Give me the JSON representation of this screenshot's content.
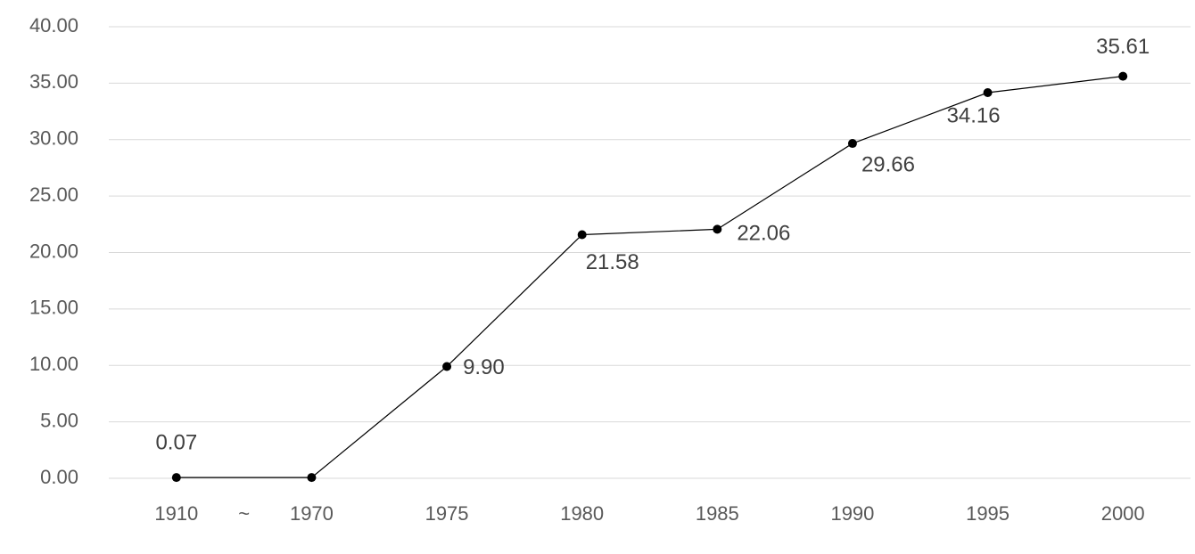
{
  "chart_data": {
    "type": "line",
    "categories": [
      "1910",
      "1970",
      "1975",
      "1980",
      "1985",
      "1990",
      "1995",
      "2000"
    ],
    "break_label": "~",
    "values": [
      0.07,
      0.07,
      9.9,
      21.58,
      22.06,
      29.66,
      34.16,
      35.61
    ],
    "value_labels": [
      "0.07",
      null,
      "9.90",
      "21.58",
      "22.06",
      "29.66",
      "34.16",
      "35.61"
    ],
    "color": "#000000",
    "ylim": [
      0,
      40
    ],
    "yticks": [
      {
        "value": 0,
        "label": "0.00"
      },
      {
        "value": 5,
        "label": "5.00"
      },
      {
        "value": 10,
        "label": "10.00"
      },
      {
        "value": 15,
        "label": "15.00"
      },
      {
        "value": 20,
        "label": "20.00"
      },
      {
        "value": 25,
        "label": "25.00"
      },
      {
        "value": 30,
        "label": "30.00"
      },
      {
        "value": 35,
        "label": "35.00"
      },
      {
        "value": 40,
        "label": "40.00"
      }
    ],
    "grid": true
  }
}
